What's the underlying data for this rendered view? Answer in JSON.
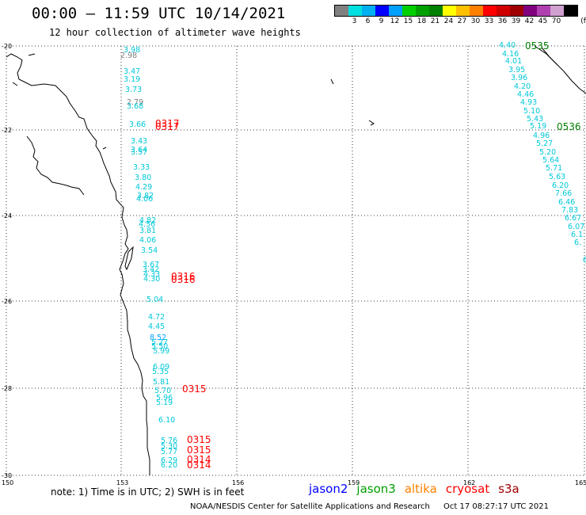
{
  "header": {
    "title": "00:00 – 11:59 UTC 10/14/2021",
    "subtitle": "12 hour collection of altimeter wave heights"
  },
  "legend": {
    "unit": "(ft)",
    "colors": [
      "#808080",
      "#00e0e0",
      "#00b0f0",
      "#0000ff",
      "#00a0ff",
      "#00d000",
      "#00a000",
      "#008000",
      "#ffff00",
      "#ffc000",
      "#ff8000",
      "#ff0000",
      "#d00000",
      "#a00000",
      "#800080",
      "#b040b0",
      "#d0a0d0",
      "#000000"
    ],
    "labels": [
      "3",
      "6",
      "9",
      "12",
      "15",
      "18",
      "21",
      "24",
      "27",
      "30",
      "33",
      "36",
      "39",
      "42",
      "45",
      "70"
    ]
  },
  "axes": {
    "lat_labels": [
      "-20",
      "-22",
      "-24",
      "-26",
      "-28",
      "-30"
    ],
    "lon_labels": [
      "150",
      "153",
      "156",
      "159",
      "162",
      "165"
    ]
  },
  "tracks": {
    "west": [
      {
        "t": "3.98",
        "c": "#00c8d8"
      },
      {
        "t": "2.98",
        "c": "#808080"
      },
      {
        "t": "3.47",
        "c": "#00c8d8"
      },
      {
        "t": "3.19",
        "c": "#00c8d8"
      },
      {
        "t": "3.73",
        "c": "#00c8d8"
      },
      {
        "t": "2.79",
        "c": "#808080"
      },
      {
        "t": "3.68",
        "c": "#00c8d8"
      },
      {
        "t": "3.66",
        "c": "#00c8d8"
      },
      {
        "t": "3.43",
        "c": "#00c8d8"
      },
      {
        "t": "3.64",
        "c": "#00c8d8"
      },
      {
        "t": "3.57",
        "c": "#00c8d8"
      },
      {
        "t": "3.33",
        "c": "#00c8d8"
      },
      {
        "t": "3.80",
        "c": "#00c8d8"
      },
      {
        "t": "4.29",
        "c": "#00c8d8"
      },
      {
        "t": "3.82",
        "c": "#00c8d8"
      },
      {
        "t": "4.06",
        "c": "#00c8d8"
      },
      {
        "t": "4.82",
        "c": "#00c8d8"
      },
      {
        "t": "4.56",
        "c": "#00c8d8"
      },
      {
        "t": "3.81",
        "c": "#00c8d8"
      },
      {
        "t": "4.06",
        "c": "#00c8d8"
      },
      {
        "t": "3.54",
        "c": "#00c8d8"
      },
      {
        "t": "3.67",
        "c": "#00c8d8"
      },
      {
        "t": "3.42",
        "c": "#00c8d8"
      },
      {
        "t": "4.33",
        "c": "#00c8d8"
      },
      {
        "t": "4.30",
        "c": "#00c8d8"
      },
      {
        "t": "5.04",
        "c": "#00c8d8"
      },
      {
        "t": "4.72",
        "c": "#00c8d8"
      },
      {
        "t": "4.45",
        "c": "#00c8d8"
      },
      {
        "t": "8.52",
        "c": "#00a0ff"
      },
      {
        "t": "5.27",
        "c": "#00c8d8"
      },
      {
        "t": "5.50",
        "c": "#00c8d8"
      },
      {
        "t": "5.99",
        "c": "#00c8d8"
      },
      {
        "t": "6.09",
        "c": "#00c8d8"
      },
      {
        "t": "5.35",
        "c": "#00c8d8"
      },
      {
        "t": "5.81",
        "c": "#00c8d8"
      },
      {
        "t": "5.70",
        "c": "#00c8d8"
      },
      {
        "t": "5.96",
        "c": "#00c8d8"
      },
      {
        "t": "5.19",
        "c": "#00c8d8"
      },
      {
        "t": "6.10",
        "c": "#00c8d8"
      },
      {
        "t": "5.76",
        "c": "#00c8d8"
      },
      {
        "t": "5.30",
        "c": "#00c8d8"
      },
      {
        "t": "5.77",
        "c": "#00c8d8"
      },
      {
        "t": "6.29",
        "c": "#00c8d8"
      },
      {
        "t": "6.20",
        "c": "#00c8d8"
      }
    ],
    "east": [
      {
        "t": "4.40"
      },
      {
        "t": "4.16"
      },
      {
        "t": "4.01"
      },
      {
        "t": "3.95"
      },
      {
        "t": "3.96"
      },
      {
        "t": "4.20"
      },
      {
        "t": "4.46"
      },
      {
        "t": "4.93"
      },
      {
        "t": "5.10"
      },
      {
        "t": "5.43"
      },
      {
        "t": "5.19"
      },
      {
        "t": "4.96"
      },
      {
        "t": "5.27"
      },
      {
        "t": "5.20"
      },
      {
        "t": "5.64"
      },
      {
        "t": "5.71"
      },
      {
        "t": "5.63"
      },
      {
        "t": "6.20"
      },
      {
        "t": "7.66"
      },
      {
        "t": "6.46"
      },
      {
        "t": "7.83"
      },
      {
        "t": "6.67"
      },
      {
        "t": "6.07"
      },
      {
        "t": "6.1"
      },
      {
        "t": "6."
      },
      {
        "t": "6"
      }
    ],
    "passes": [
      {
        "t": "0317",
        "c": "#ff0000"
      },
      {
        "t": "0317",
        "c": "#ff0000"
      },
      {
        "t": "0316",
        "c": "#ff0000"
      },
      {
        "t": "0316",
        "c": "#ff0000"
      },
      {
        "t": "0315",
        "c": "#ff0000"
      },
      {
        "t": "0315",
        "c": "#ff0000"
      },
      {
        "t": "0315",
        "c": "#ff0000"
      },
      {
        "t": "0314",
        "c": "#ff0000"
      },
      {
        "t": "0314",
        "c": "#ff0000"
      },
      {
        "t": "0535",
        "c": "#008000"
      },
      {
        "t": "0536",
        "c": "#008000"
      }
    ]
  },
  "footer": {
    "note": "note: 1) Time is in UTC; 2) SWH is in feet",
    "satellites": [
      {
        "name": "jason2",
        "color": "#0000ff"
      },
      {
        "name": "jason3",
        "color": "#00a000"
      },
      {
        "name": "altika",
        "color": "#ff8000"
      },
      {
        "name": "cryosat",
        "color": "#ff0000"
      },
      {
        "name": "s3a",
        "color": "#a00000"
      }
    ],
    "credit": "NOAA/NESDIS Center for Satellite Applications and Research",
    "generated": "Oct 17 08:27:17 UTC 2021"
  }
}
